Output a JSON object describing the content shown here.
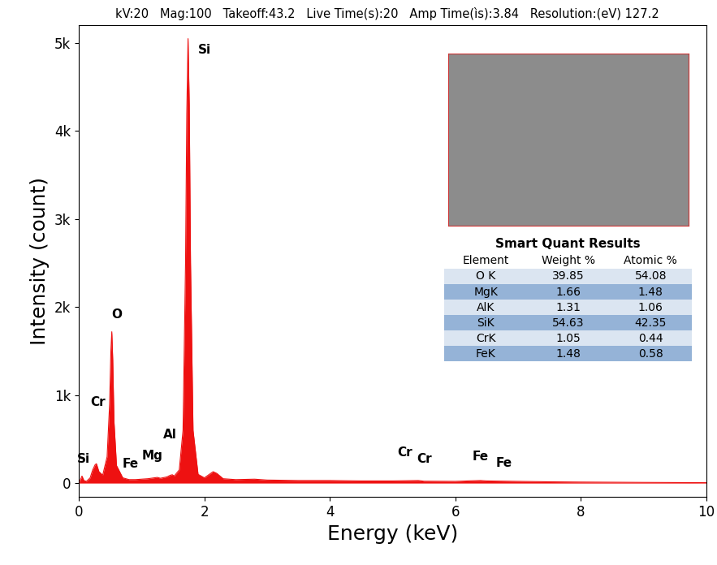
{
  "chart_data": {
    "type": "area",
    "header": "kV:20   Mag:100   Takeoff:43.2   Live Time(s):20   Amp Time(ìs):3.84   Resolution:(eV) 127.2",
    "x_label": "Energy (keV)",
    "y_label": "Intensity (count)",
    "x": [
      0,
      0.05,
      0.08,
      0.12,
      0.18,
      0.22,
      0.26,
      0.28,
      0.32,
      0.38,
      0.45,
      0.49,
      0.51,
      0.525,
      0.54,
      0.56,
      0.6,
      0.7,
      0.8,
      0.9,
      1.0,
      1.1,
      1.2,
      1.25,
      1.3,
      1.4,
      1.46,
      1.49,
      1.52,
      1.6,
      1.66,
      1.7,
      1.72,
      1.74,
      1.76,
      1.78,
      1.82,
      1.9,
      2.0,
      2.08,
      2.14,
      2.2,
      2.3,
      2.5,
      2.8,
      3.0,
      3.5,
      4.0,
      4.5,
      5.0,
      5.41,
      5.5,
      6.0,
      6.4,
      6.5,
      7.0,
      7.5,
      8.0,
      9.0,
      10.0
    ],
    "values": [
      0,
      80,
      30,
      20,
      60,
      150,
      210,
      220,
      130,
      90,
      300,
      900,
      1500,
      1720,
      1400,
      700,
      200,
      60,
      40,
      40,
      45,
      50,
      60,
      65,
      55,
      70,
      90,
      95,
      80,
      150,
      600,
      2500,
      4200,
      5050,
      4300,
      2500,
      600,
      100,
      60,
      100,
      130,
      110,
      50,
      40,
      45,
      35,
      30,
      30,
      25,
      25,
      30,
      22,
      20,
      30,
      25,
      20,
      15,
      12,
      8,
      5
    ],
    "color": "#ee1111",
    "xlim": [
      0,
      10
    ],
    "xticks": [
      0,
      2,
      4,
      6,
      8,
      10
    ],
    "ylim": [
      -160,
      5200
    ],
    "yticks": [
      0,
      {
        "value": 1000,
        "label": "1k"
      },
      {
        "value": 2000,
        "label": "2k"
      },
      {
        "value": 3000,
        "label": "3k"
      },
      {
        "value": 4000,
        "label": "4k"
      },
      {
        "value": 5000,
        "label": "5k"
      }
    ],
    "annotations": [
      {
        "text": "Si",
        "x": 0.08,
        "y": 200
      },
      {
        "text": "Cr",
        "x": 0.3,
        "y": 850
      },
      {
        "text": "O",
        "x": 0.6,
        "y": 1850
      },
      {
        "text": "Fe",
        "x": 0.82,
        "y": 150
      },
      {
        "text": "Mg",
        "x": 1.17,
        "y": 240
      },
      {
        "text": "Al",
        "x": 1.45,
        "y": 480
      },
      {
        "text": "Si",
        "x": 2.0,
        "y": 4850
      },
      {
        "text": "Cr",
        "x": 5.2,
        "y": 280
      },
      {
        "text": "Cr",
        "x": 5.5,
        "y": 200
      },
      {
        "text": "Fe",
        "x": 6.4,
        "y": 230
      },
      {
        "text": "Fe",
        "x": 6.78,
        "y": 160
      }
    ],
    "table": {
      "title": "Smart Quant Results",
      "header": [
        "Element",
        "Weight %",
        "Atomic %"
      ],
      "rows": [
        [
          "O K",
          "39.85",
          "54.08"
        ],
        [
          "MgK",
          "1.66",
          "1.48"
        ],
        [
          "AlK",
          "1.31",
          "1.06"
        ],
        [
          "SiK",
          "54.63",
          "42.35"
        ],
        [
          "CrK",
          "1.05",
          "0.44"
        ],
        [
          "FeK",
          "1.48",
          "0.58"
        ]
      ]
    }
  }
}
